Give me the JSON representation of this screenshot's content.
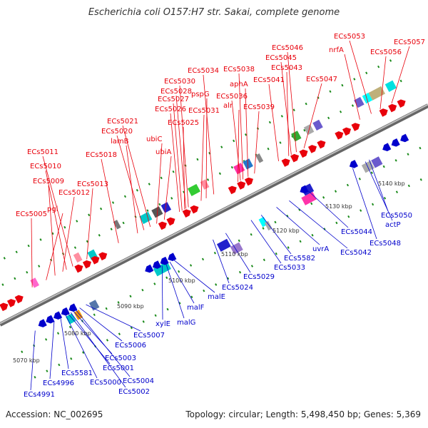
{
  "title": "Escherichia coli O157:H7 str. Sakai, complete genome",
  "footer": {
    "accession": "Accession: NC_002695",
    "summary": "Topology: circular; Length: 5,498,450 bp; Genes: 5,369"
  },
  "colors": {
    "forward": "#e8000b",
    "reverse": "#0000cc",
    "backbone": "#888888",
    "tick": "#1a8a1a"
  },
  "ruler": [
    {
      "label": "5070 kbp"
    },
    {
      "label": "5080 kbp"
    },
    {
      "label": "5090 kbp"
    },
    {
      "label": "5100 kbp"
    },
    {
      "label": "5110 kbp"
    },
    {
      "label": "5120 kbp"
    },
    {
      "label": "5130 kbp"
    },
    {
      "label": "5140 kbp"
    }
  ],
  "forward_labels": [
    {
      "text": "ECs5005"
    },
    {
      "text": "pgi"
    },
    {
      "text": "ECs5009"
    },
    {
      "text": "ECs5012"
    },
    {
      "text": "ECs5010"
    },
    {
      "text": "ECs5011"
    },
    {
      "text": "ECs5013"
    },
    {
      "text": "ECs5018"
    },
    {
      "text": "lamB"
    },
    {
      "text": "ECs5020"
    },
    {
      "text": "ECs5021"
    },
    {
      "text": "ubiA"
    },
    {
      "text": "ubiC"
    },
    {
      "text": "ECs5025"
    },
    {
      "text": "ECs5026"
    },
    {
      "text": "ECs5027"
    },
    {
      "text": "ECs5028"
    },
    {
      "text": "ECs5030"
    },
    {
      "text": "ECs5031"
    },
    {
      "text": "pspG"
    },
    {
      "text": "ECs5034"
    },
    {
      "text": "alr"
    },
    {
      "text": "ECs5036"
    },
    {
      "text": "aphA"
    },
    {
      "text": "ECs5038"
    },
    {
      "text": "ECs5039"
    },
    {
      "text": "ECs5041"
    },
    {
      "text": "ECs5043"
    },
    {
      "text": "ECs5045"
    },
    {
      "text": "ECs5046"
    },
    {
      "text": "ECs5047"
    },
    {
      "text": "nrfA"
    },
    {
      "text": "ECs5053"
    },
    {
      "text": "ECs5056"
    },
    {
      "text": "ECs5057"
    }
  ],
  "reverse_labels": [
    {
      "text": "ECs4991"
    },
    {
      "text": "ECs4996"
    },
    {
      "text": "ECs5581"
    },
    {
      "text": "ECs5000"
    },
    {
      "text": "ECs5001"
    },
    {
      "text": "ECs5002"
    },
    {
      "text": "ECs5003"
    },
    {
      "text": "ECs5004"
    },
    {
      "text": "ECs5006"
    },
    {
      "text": "ECs5007"
    },
    {
      "text": "xylE"
    },
    {
      "text": "malG"
    },
    {
      "text": "malF"
    },
    {
      "text": "malE"
    },
    {
      "text": "ECs5024"
    },
    {
      "text": "ECs5029"
    },
    {
      "text": "ECs5033"
    },
    {
      "text": "ECs5582"
    },
    {
      "text": "uvrA"
    },
    {
      "text": "ECs5042"
    },
    {
      "text": "ECs5044"
    },
    {
      "text": "ECs5048"
    },
    {
      "text": "actP"
    },
    {
      "text": "ECs5050"
    }
  ]
}
